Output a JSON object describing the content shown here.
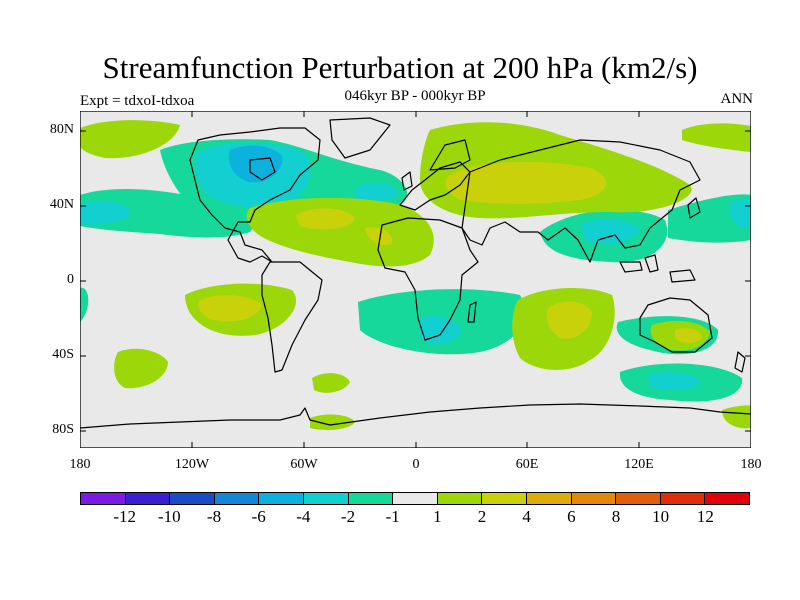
{
  "title": "Streamfunction Perturbation at 200 hPa (km2/s)",
  "subtitle": "046kyr BP - 000kyr BP",
  "left_label": "Expt = tdxoI-tdxoa",
  "right_label": "ANN",
  "lat_ticks": [
    "80N",
    "40N",
    "0",
    "40S",
    "80S"
  ],
  "lon_ticks": [
    "180",
    "120W",
    "60W",
    "0",
    "60E",
    "120E",
    "180"
  ],
  "colorbar": {
    "colors": [
      "#7a1be4",
      "#3c1fd3",
      "#1b4cc8",
      "#1486d6",
      "#0db1dd",
      "#12cfd0",
      "#16d89b",
      "#e9e9e9",
      "#9cd70a",
      "#c9d10b",
      "#dbac0b",
      "#e2890b",
      "#e15f0b",
      "#df2e0c",
      "#e2020c"
    ],
    "labels": [
      "-12",
      "-10",
      "-8",
      "-6",
      "-4",
      "-2",
      "-1",
      "1",
      "2",
      "4",
      "6",
      "8",
      "10",
      "12"
    ]
  },
  "colors": {
    "background": "#e9e9e9",
    "neg_1": "#16d89b",
    "neg_2": "#12cfd0",
    "neg_4": "#0db1dd",
    "pos_1": "#9cd70a",
    "pos_2": "#c9d10b"
  }
}
